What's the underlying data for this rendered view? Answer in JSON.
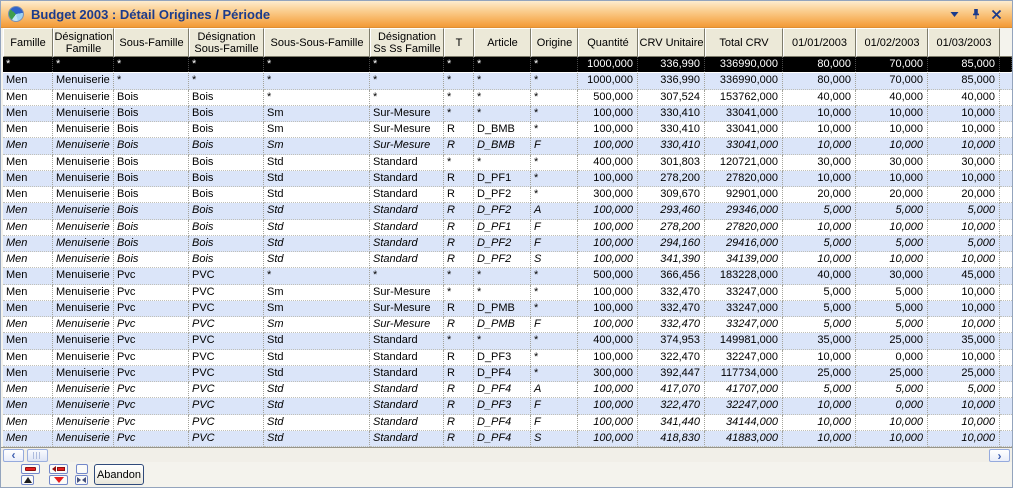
{
  "window": {
    "title": "Budget 2003 : Détail Origines / Période",
    "icon": "pie-chart-icon",
    "controls": [
      {
        "id": "menu",
        "icon": "chevron-down-icon"
      },
      {
        "id": "pin",
        "icon": "pin-icon"
      },
      {
        "id": "close",
        "icon": "close-icon"
      }
    ]
  },
  "grid": {
    "columns": [
      {
        "id": "famille",
        "label": "Famille"
      },
      {
        "id": "designation-famille",
        "label": "Désignation Famille"
      },
      {
        "id": "sous-famille",
        "label": "Sous-Famille"
      },
      {
        "id": "designation-sous-famille",
        "label": "Désignation Sous-Famille"
      },
      {
        "id": "sous-sous-famille",
        "label": "Sous-Sous-Famille"
      },
      {
        "id": "designation-ss-ss-famille",
        "label": "Désignation Ss Ss Famille"
      },
      {
        "id": "t",
        "label": "T"
      },
      {
        "id": "article",
        "label": "Article"
      },
      {
        "id": "origine",
        "label": "Origine"
      },
      {
        "id": "quantite",
        "label": "Quantité"
      },
      {
        "id": "crv-unitaire",
        "label": "CRV Unitaire"
      },
      {
        "id": "total-crv",
        "label": "Total CRV"
      },
      {
        "id": "m-01-01-2003",
        "label": "01/01/2003"
      },
      {
        "id": "m-01-02-2003",
        "label": "01/02/2003"
      },
      {
        "id": "m-01-03-2003",
        "label": "01/03/2003"
      }
    ],
    "rows": [
      {
        "selected": true,
        "italic": false,
        "cells": [
          "*",
          "*",
          "*",
          "*",
          "*",
          "*",
          "*",
          "*",
          "*",
          "1000,000",
          "336,990",
          "336990,000",
          "80,000",
          "70,000",
          "85,000"
        ]
      },
      {
        "selected": false,
        "italic": false,
        "cells": [
          "Men",
          "Menuiserie",
          "*",
          "*",
          "*",
          "*",
          "*",
          "*",
          "*",
          "1000,000",
          "336,990",
          "336990,000",
          "80,000",
          "70,000",
          "85,000"
        ]
      },
      {
        "selected": false,
        "italic": false,
        "cells": [
          "Men",
          "Menuiserie",
          "Bois",
          "Bois",
          "*",
          "*",
          "*",
          "*",
          "*",
          "500,000",
          "307,524",
          "153762,000",
          "40,000",
          "40,000",
          "40,000"
        ]
      },
      {
        "selected": false,
        "italic": false,
        "cells": [
          "Men",
          "Menuiserie",
          "Bois",
          "Bois",
          "Sm",
          "Sur-Mesure",
          "*",
          "*",
          "*",
          "100,000",
          "330,410",
          "33041,000",
          "10,000",
          "10,000",
          "10,000"
        ]
      },
      {
        "selected": false,
        "italic": false,
        "cells": [
          "Men",
          "Menuiserie",
          "Bois",
          "Bois",
          "Sm",
          "Sur-Mesure",
          "R",
          "D_BMB",
          "*",
          "100,000",
          "330,410",
          "33041,000",
          "10,000",
          "10,000",
          "10,000"
        ]
      },
      {
        "selected": false,
        "italic": true,
        "cells": [
          "Men",
          "Menuiserie",
          "Bois",
          "Bois",
          "Sm",
          "Sur-Mesure",
          "R",
          "D_BMB",
          "F",
          "100,000",
          "330,410",
          "33041,000",
          "10,000",
          "10,000",
          "10,000"
        ]
      },
      {
        "selected": false,
        "italic": false,
        "cells": [
          "Men",
          "Menuiserie",
          "Bois",
          "Bois",
          "Std",
          "Standard",
          "*",
          "*",
          "*",
          "400,000",
          "301,803",
          "120721,000",
          "30,000",
          "30,000",
          "30,000"
        ]
      },
      {
        "selected": false,
        "italic": false,
        "cells": [
          "Men",
          "Menuiserie",
          "Bois",
          "Bois",
          "Std",
          "Standard",
          "R",
          "D_PF1",
          "*",
          "100,000",
          "278,200",
          "27820,000",
          "10,000",
          "10,000",
          "10,000"
        ]
      },
      {
        "selected": false,
        "italic": false,
        "cells": [
          "Men",
          "Menuiserie",
          "Bois",
          "Bois",
          "Std",
          "Standard",
          "R",
          "D_PF2",
          "*",
          "300,000",
          "309,670",
          "92901,000",
          "20,000",
          "20,000",
          "20,000"
        ]
      },
      {
        "selected": false,
        "italic": true,
        "cells": [
          "Men",
          "Menuiserie",
          "Bois",
          "Bois",
          "Std",
          "Standard",
          "R",
          "D_PF2",
          "A",
          "100,000",
          "293,460",
          "29346,000",
          "5,000",
          "5,000",
          "5,000"
        ]
      },
      {
        "selected": false,
        "italic": true,
        "cells": [
          "Men",
          "Menuiserie",
          "Bois",
          "Bois",
          "Std",
          "Standard",
          "R",
          "D_PF1",
          "F",
          "100,000",
          "278,200",
          "27820,000",
          "10,000",
          "10,000",
          "10,000"
        ]
      },
      {
        "selected": false,
        "italic": true,
        "cells": [
          "Men",
          "Menuiserie",
          "Bois",
          "Bois",
          "Std",
          "Standard",
          "R",
          "D_PF2",
          "F",
          "100,000",
          "294,160",
          "29416,000",
          "5,000",
          "5,000",
          "5,000"
        ]
      },
      {
        "selected": false,
        "italic": true,
        "cells": [
          "Men",
          "Menuiserie",
          "Bois",
          "Bois",
          "Std",
          "Standard",
          "R",
          "D_PF2",
          "S",
          "100,000",
          "341,390",
          "34139,000",
          "10,000",
          "10,000",
          "10,000"
        ]
      },
      {
        "selected": false,
        "italic": false,
        "cells": [
          "Men",
          "Menuiserie",
          "Pvc",
          "PVC",
          "*",
          "*",
          "*",
          "*",
          "*",
          "500,000",
          "366,456",
          "183228,000",
          "40,000",
          "30,000",
          "45,000"
        ]
      },
      {
        "selected": false,
        "italic": false,
        "cells": [
          "Men",
          "Menuiserie",
          "Pvc",
          "PVC",
          "Sm",
          "Sur-Mesure",
          "*",
          "*",
          "*",
          "100,000",
          "332,470",
          "33247,000",
          "5,000",
          "5,000",
          "10,000"
        ]
      },
      {
        "selected": false,
        "italic": false,
        "cells": [
          "Men",
          "Menuiserie",
          "Pvc",
          "PVC",
          "Sm",
          "Sur-Mesure",
          "R",
          "D_PMB",
          "*",
          "100,000",
          "332,470",
          "33247,000",
          "5,000",
          "5,000",
          "10,000"
        ]
      },
      {
        "selected": false,
        "italic": true,
        "cells": [
          "Men",
          "Menuiserie",
          "Pvc",
          "PVC",
          "Sm",
          "Sur-Mesure",
          "R",
          "D_PMB",
          "F",
          "100,000",
          "332,470",
          "33247,000",
          "5,000",
          "5,000",
          "10,000"
        ]
      },
      {
        "selected": false,
        "italic": false,
        "cells": [
          "Men",
          "Menuiserie",
          "Pvc",
          "PVC",
          "Std",
          "Standard",
          "*",
          "*",
          "*",
          "400,000",
          "374,953",
          "149981,000",
          "35,000",
          "25,000",
          "35,000"
        ]
      },
      {
        "selected": false,
        "italic": false,
        "cells": [
          "Men",
          "Menuiserie",
          "Pvc",
          "PVC",
          "Std",
          "Standard",
          "R",
          "D_PF3",
          "*",
          "100,000",
          "322,470",
          "32247,000",
          "10,000",
          "0,000",
          "10,000"
        ]
      },
      {
        "selected": false,
        "italic": false,
        "cells": [
          "Men",
          "Menuiserie",
          "Pvc",
          "PVC",
          "Std",
          "Standard",
          "R",
          "D_PF4",
          "*",
          "300,000",
          "392,447",
          "117734,000",
          "25,000",
          "25,000",
          "25,000"
        ]
      },
      {
        "selected": false,
        "italic": true,
        "cells": [
          "Men",
          "Menuiserie",
          "Pvc",
          "PVC",
          "Std",
          "Standard",
          "R",
          "D_PF4",
          "A",
          "100,000",
          "417,070",
          "41707,000",
          "5,000",
          "5,000",
          "5,000"
        ]
      },
      {
        "selected": false,
        "italic": true,
        "cells": [
          "Men",
          "Menuiserie",
          "Pvc",
          "PVC",
          "Std",
          "Standard",
          "R",
          "D_PF3",
          "F",
          "100,000",
          "322,470",
          "32247,000",
          "10,000",
          "0,000",
          "10,000"
        ]
      },
      {
        "selected": false,
        "italic": true,
        "cells": [
          "Men",
          "Menuiserie",
          "Pvc",
          "PVC",
          "Std",
          "Standard",
          "R",
          "D_PF4",
          "F",
          "100,000",
          "341,440",
          "34144,000",
          "10,000",
          "10,000",
          "10,000"
        ]
      },
      {
        "selected": false,
        "italic": true,
        "cells": [
          "Men",
          "Menuiserie",
          "Pvc",
          "PVC",
          "Std",
          "Standard",
          "R",
          "D_PF4",
          "S",
          "100,000",
          "418,830",
          "41883,000",
          "10,000",
          "10,000",
          "10,000"
        ]
      }
    ]
  },
  "scrollbar": {
    "left_glyph": "‹",
    "right_glyph": "›"
  },
  "toolbar": {
    "abandon_label": "Abandon",
    "mini_buttons": [
      {
        "id": "red-bar-button",
        "icon": "red-bar-icon"
      },
      {
        "id": "red-bar-arrow-button",
        "icon": "red-bar-arrow-icon"
      },
      {
        "id": "blank-button",
        "icon": "blank"
      },
      {
        "id": "move-up-button",
        "icon": "up-triangle-icon"
      },
      {
        "id": "move-down-button",
        "icon": "down-triangle-icon"
      },
      {
        "id": "inward-arrows-button",
        "icon": "inward-arrows-icon"
      }
    ]
  },
  "colors": {
    "titlebar_gradient_top": "#fdeccf",
    "titlebar_gradient_bottom": "#f09a38",
    "titlebar_text": "#1b3b8c",
    "header_bg": "#ece9d8",
    "row_alt_bg": "#dbe5f9",
    "selected_row_bg": "#000000",
    "selected_row_text": "#ffffff",
    "accent_red": "#e41f1f"
  }
}
